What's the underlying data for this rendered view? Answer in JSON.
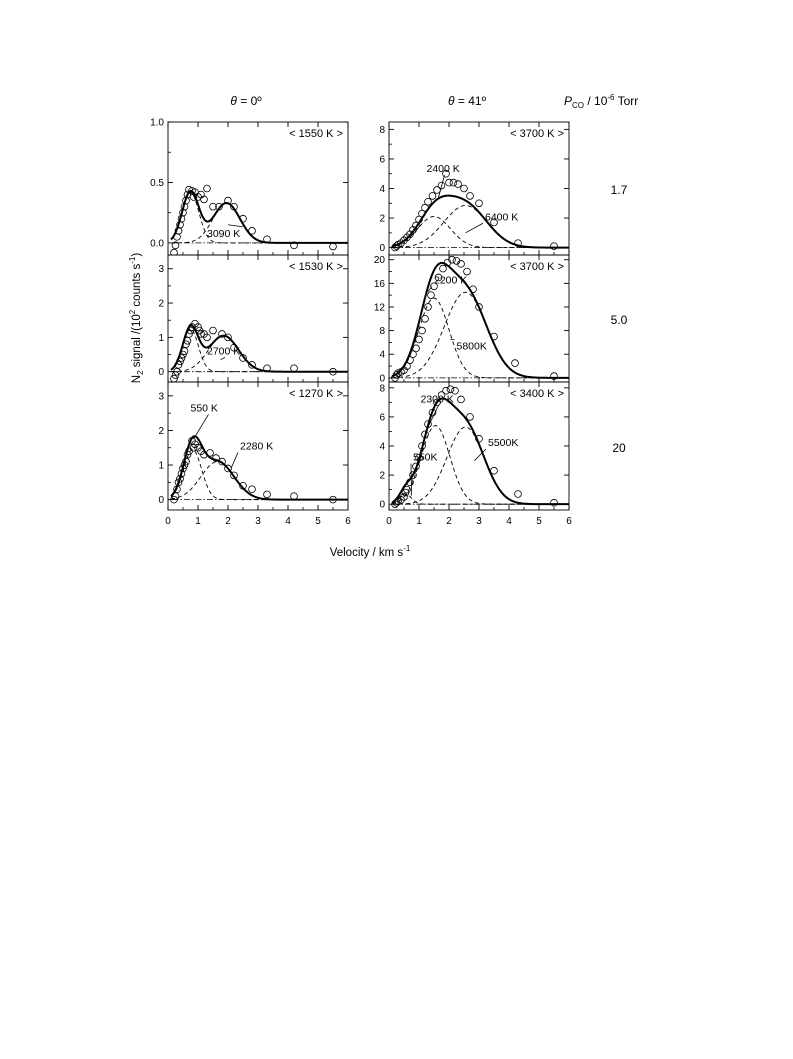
{
  "figure": {
    "column_titles": [
      {
        "symbol": "θ",
        "value": " = 0º"
      },
      {
        "symbol": "θ",
        "value": " = 41º"
      }
    ],
    "pressure_header": {
      "symbol": "P",
      "sub": "CO",
      "rest": " / 10",
      "sup": "-6",
      "unit": " Torr"
    },
    "pressure_values": [
      "1.7",
      "5.0",
      "20"
    ],
    "ylabel": {
      "p1": "N",
      "sub": "2",
      "p2": " signal /(10",
      "sup": "2",
      "p3": " counts s",
      "sup2": "-1",
      "p4": ")"
    },
    "xlabel": {
      "p1": "Velocity / km s",
      "sup": "-1"
    }
  },
  "chart_data": [
    {
      "type": "scatter",
      "row": 0,
      "col": 0,
      "xlim": [
        0,
        6
      ],
      "ylim": [
        -0.1,
        1.0
      ],
      "yticks": [
        0.0,
        0.5,
        1.0
      ],
      "ytick_labels": [
        "0.0",
        "0.5",
        "1.0"
      ],
      "xticks": [
        0,
        1,
        2,
        3,
        4,
        5,
        6
      ],
      "show_xtick_labels": false,
      "temp_label": "< 1550 K >",
      "points": [
        [
          0.2,
          -0.08
        ],
        [
          0.25,
          -0.02
        ],
        [
          0.3,
          0.05
        ],
        [
          0.35,
          0.1
        ],
        [
          0.4,
          0.15
        ],
        [
          0.45,
          0.2
        ],
        [
          0.5,
          0.25
        ],
        [
          0.55,
          0.3
        ],
        [
          0.6,
          0.35
        ],
        [
          0.65,
          0.4
        ],
        [
          0.7,
          0.44
        ],
        [
          0.8,
          0.43
        ],
        [
          0.85,
          0.38
        ],
        [
          0.9,
          0.42
        ],
        [
          1.0,
          0.38
        ],
        [
          1.1,
          0.4
        ],
        [
          1.2,
          0.36
        ],
        [
          1.3,
          0.45
        ],
        [
          1.5,
          0.3
        ],
        [
          1.7,
          0.3
        ],
        [
          2.0,
          0.35
        ],
        [
          2.2,
          0.3
        ],
        [
          2.5,
          0.2
        ],
        [
          2.8,
          0.1
        ],
        [
          3.3,
          0.03
        ],
        [
          4.2,
          -0.02
        ],
        [
          5.5,
          -0.03
        ]
      ],
      "components": [
        {
          "a": 0.42,
          "mu": 0.75,
          "s": 0.28
        },
        {
          "a": 0.33,
          "mu": 1.95,
          "s": 0.45
        }
      ],
      "baseline": 0,
      "annotations": [
        {
          "text": "3090 K",
          "x": 1.3,
          "y": 0.05,
          "ax": 2.0,
          "ay": 0.15
        }
      ]
    },
    {
      "type": "scatter",
      "row": 0,
      "col": 1,
      "xlim": [
        0,
        6
      ],
      "ylim": [
        -0.5,
        8.5
      ],
      "yticks": [
        0,
        2,
        4,
        6,
        8
      ],
      "ytick_labels": [
        "0",
        "2",
        "4",
        "6",
        "8"
      ],
      "xticks": [
        0,
        1,
        2,
        3,
        4,
        5,
        6
      ],
      "show_xtick_labels": false,
      "temp_label": "< 3700 K >",
      "points": [
        [
          0.2,
          0.0
        ],
        [
          0.25,
          0.1
        ],
        [
          0.3,
          0.2
        ],
        [
          0.4,
          0.3
        ],
        [
          0.5,
          0.5
        ],
        [
          0.6,
          0.7
        ],
        [
          0.7,
          0.9
        ],
        [
          0.8,
          1.2
        ],
        [
          0.9,
          1.5
        ],
        [
          1.0,
          1.9
        ],
        [
          1.1,
          2.3
        ],
        [
          1.2,
          2.7
        ],
        [
          1.3,
          3.1
        ],
        [
          1.45,
          3.5
        ],
        [
          1.6,
          3.9
        ],
        [
          1.75,
          4.2
        ],
        [
          1.9,
          5.0
        ],
        [
          2.0,
          4.4
        ],
        [
          2.15,
          4.4
        ],
        [
          2.3,
          4.3
        ],
        [
          2.5,
          4.0
        ],
        [
          2.7,
          3.5
        ],
        [
          3.0,
          3.0
        ],
        [
          3.5,
          1.7
        ],
        [
          4.3,
          0.3
        ],
        [
          5.5,
          0.1
        ]
      ],
      "components": [
        {
          "a": 2.1,
          "mu": 1.5,
          "s": 0.55
        },
        {
          "a": 2.85,
          "mu": 2.55,
          "s": 0.72
        }
      ],
      "baseline": 0,
      "annotations": [
        {
          "text": "2400 K",
          "x": 1.25,
          "y": 5.1,
          "ax": 1.65,
          "ay": 3.4
        },
        {
          "text": "6400 K",
          "x": 3.2,
          "y": 1.85,
          "ax": 2.55,
          "ay": 1.0
        }
      ]
    },
    {
      "type": "scatter",
      "row": 1,
      "col": 0,
      "xlim": [
        0,
        6
      ],
      "ylim": [
        -0.3,
        3.4
      ],
      "yticks": [
        0,
        1,
        2,
        3
      ],
      "ytick_labels": [
        "0",
        "1",
        "2",
        "3"
      ],
      "xticks": [
        0,
        1,
        2,
        3,
        4,
        5,
        6
      ],
      "show_xtick_labels": false,
      "temp_label": "< 1530 K >",
      "points": [
        [
          0.2,
          -0.2
        ],
        [
          0.25,
          -0.1
        ],
        [
          0.3,
          0.0
        ],
        [
          0.35,
          0.2
        ],
        [
          0.4,
          0.3
        ],
        [
          0.45,
          0.4
        ],
        [
          0.5,
          0.5
        ],
        [
          0.55,
          0.6
        ],
        [
          0.6,
          0.8
        ],
        [
          0.65,
          0.9
        ],
        [
          0.7,
          1.1
        ],
        [
          0.75,
          1.2
        ],
        [
          0.8,
          1.3
        ],
        [
          0.9,
          1.4
        ],
        [
          1.0,
          1.3
        ],
        [
          1.05,
          1.2
        ],
        [
          1.1,
          1.1
        ],
        [
          1.2,
          1.1
        ],
        [
          1.3,
          1.0
        ],
        [
          1.5,
          1.2
        ],
        [
          1.8,
          1.1
        ],
        [
          2.0,
          1.0
        ],
        [
          2.2,
          0.7
        ],
        [
          2.5,
          0.4
        ],
        [
          2.8,
          0.2
        ],
        [
          3.3,
          0.1
        ],
        [
          4.2,
          0.1
        ],
        [
          5.5,
          0.0
        ]
      ],
      "components": [
        {
          "a": 1.25,
          "mu": 0.75,
          "s": 0.26
        },
        {
          "a": 1.05,
          "mu": 1.85,
          "s": 0.5
        }
      ],
      "baseline": 0,
      "annotations": [
        {
          "text": "2700 K",
          "x": 1.3,
          "y": 0.5,
          "ax": 1.75,
          "ay": 0.35
        }
      ]
    },
    {
      "type": "scatter",
      "row": 1,
      "col": 1,
      "xlim": [
        0,
        6
      ],
      "ylim": [
        -0.7,
        20.8
      ],
      "yticks": [
        0,
        4,
        8,
        12,
        16,
        20
      ],
      "ytick_labels": [
        "0",
        "4",
        "8",
        "12",
        "16",
        "20"
      ],
      "xticks": [
        0,
        1,
        2,
        3,
        4,
        5,
        6
      ],
      "show_xtick_labels": false,
      "temp_label": "< 3700 K >",
      "points": [
        [
          0.2,
          0.0
        ],
        [
          0.25,
          0.5
        ],
        [
          0.3,
          0.8
        ],
        [
          0.4,
          1.0
        ],
        [
          0.5,
          1.3
        ],
        [
          0.6,
          2.0
        ],
        [
          0.7,
          3.0
        ],
        [
          0.8,
          4.0
        ],
        [
          0.9,
          5.0
        ],
        [
          1.0,
          6.5
        ],
        [
          1.1,
          8.0
        ],
        [
          1.2,
          10.0
        ],
        [
          1.3,
          12.0
        ],
        [
          1.4,
          14.0
        ],
        [
          1.5,
          15.5
        ],
        [
          1.65,
          17.0
        ],
        [
          1.8,
          18.5
        ],
        [
          1.95,
          19.5
        ],
        [
          2.1,
          20.0
        ],
        [
          2.25,
          19.8
        ],
        [
          2.4,
          19.3
        ],
        [
          2.6,
          18.0
        ],
        [
          2.8,
          15.0
        ],
        [
          3.0,
          12.0
        ],
        [
          3.5,
          7.0
        ],
        [
          4.2,
          2.5
        ],
        [
          5.5,
          0.3
        ]
      ],
      "components": [
        {
          "a": 13.5,
          "mu": 1.5,
          "s": 0.5
        },
        {
          "a": 14.5,
          "mu": 2.55,
          "s": 0.7
        }
      ],
      "baseline": 0,
      "annotations": [
        {
          "text": "2200 K",
          "x": 1.5,
          "y": 16.0,
          "ax": 1.3,
          "ay": 14.6
        },
        {
          "text": "5800K",
          "x": 2.25,
          "y": 4.8,
          "ax": 2.05,
          "ay": 6.5
        }
      ]
    },
    {
      "type": "scatter",
      "row": 2,
      "col": 0,
      "xlim": [
        0,
        6
      ],
      "ylim": [
        -0.3,
        3.4
      ],
      "yticks": [
        0,
        1,
        2,
        3
      ],
      "ytick_labels": [
        "0",
        "1",
        "2",
        "3"
      ],
      "xticks": [
        0,
        1,
        2,
        3,
        4,
        5,
        6
      ],
      "show_xtick_labels": true,
      "xtick_labels": [
        "0",
        "1",
        "2",
        "3",
        "4",
        "5",
        "6"
      ],
      "temp_label": "< 1270 K >",
      "points": [
        [
          0.2,
          0.0
        ],
        [
          0.25,
          0.1
        ],
        [
          0.3,
          0.3
        ],
        [
          0.35,
          0.5
        ],
        [
          0.4,
          0.6
        ],
        [
          0.45,
          0.75
        ],
        [
          0.5,
          0.9
        ],
        [
          0.55,
          1.0
        ],
        [
          0.6,
          1.1
        ],
        [
          0.65,
          1.3
        ],
        [
          0.7,
          1.4
        ],
        [
          0.8,
          1.7
        ],
        [
          0.85,
          1.5
        ],
        [
          0.9,
          1.6
        ],
        [
          1.0,
          1.5
        ],
        [
          1.1,
          1.4
        ],
        [
          1.2,
          1.3
        ],
        [
          1.4,
          1.35
        ],
        [
          1.6,
          1.2
        ],
        [
          1.8,
          1.1
        ],
        [
          2.0,
          0.9
        ],
        [
          2.2,
          0.7
        ],
        [
          2.5,
          0.4
        ],
        [
          2.8,
          0.3
        ],
        [
          3.3,
          0.15
        ],
        [
          4.2,
          0.1
        ],
        [
          5.5,
          0.0
        ]
      ],
      "components": [
        {
          "a": 1.45,
          "mu": 0.82,
          "s": 0.3
        },
        {
          "a": 1.1,
          "mu": 1.65,
          "s": 0.55
        }
      ],
      "baseline": 0,
      "annotations": [
        {
          "text": "550 K",
          "x": 0.75,
          "y": 2.55,
          "ax": 0.85,
          "ay": 1.75
        },
        {
          "text": "2280 K",
          "x": 2.4,
          "y": 1.45,
          "ax": 2.1,
          "ay": 0.9
        }
      ]
    },
    {
      "type": "scatter",
      "row": 2,
      "col": 1,
      "xlim": [
        0,
        6
      ],
      "ylim": [
        -0.4,
        8.4
      ],
      "yticks": [
        0,
        2,
        4,
        6,
        8
      ],
      "ytick_labels": [
        "0",
        "2",
        "4",
        "6",
        "8"
      ],
      "xticks": [
        0,
        1,
        2,
        3,
        4,
        5,
        6
      ],
      "show_xtick_labels": true,
      "xtick_labels": [
        "0",
        "1",
        "2",
        "3",
        "4",
        "5",
        "6"
      ],
      "temp_label": "< 3400 K >",
      "points": [
        [
          0.2,
          0.0
        ],
        [
          0.25,
          0.1
        ],
        [
          0.3,
          0.2
        ],
        [
          0.4,
          0.3
        ],
        [
          0.5,
          0.5
        ],
        [
          0.55,
          0.8
        ],
        [
          0.6,
          1.0
        ],
        [
          0.7,
          1.5
        ],
        [
          0.8,
          2.0
        ],
        [
          0.9,
          2.6
        ],
        [
          1.0,
          3.2
        ],
        [
          1.1,
          4.0
        ],
        [
          1.2,
          4.8
        ],
        [
          1.3,
          5.5
        ],
        [
          1.45,
          6.3
        ],
        [
          1.6,
          7.0
        ],
        [
          1.75,
          7.5
        ],
        [
          1.9,
          7.8
        ],
        [
          2.05,
          7.9
        ],
        [
          2.2,
          7.8
        ],
        [
          2.4,
          7.2
        ],
        [
          2.7,
          6.0
        ],
        [
          3.0,
          4.5
        ],
        [
          3.5,
          2.3
        ],
        [
          4.3,
          0.7
        ],
        [
          5.5,
          0.1
        ]
      ],
      "components": [
        {
          "a": 0.7,
          "mu": 0.55,
          "s": 0.2
        },
        {
          "a": 5.4,
          "mu": 1.55,
          "s": 0.48
        },
        {
          "a": 5.3,
          "mu": 2.55,
          "s": 0.62
        }
      ],
      "baseline": 0,
      "annotations": [
        {
          "text": "2300 K",
          "x": 1.05,
          "y": 7.0,
          "ax": 1.3,
          "ay": 5.3
        },
        {
          "text": "550K",
          "x": 0.8,
          "y": 3.0,
          "ax": 0.75,
          "ay": 0.6
        },
        {
          "text": "5500K",
          "x": 3.3,
          "y": 4.0,
          "ax": 2.85,
          "ay": 3.0
        }
      ]
    }
  ]
}
